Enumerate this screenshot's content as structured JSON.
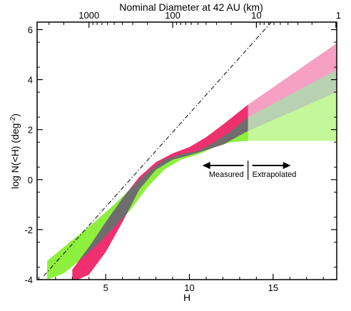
{
  "chart_data": {
    "type": "area",
    "title": "Nominal Diameter at 42 AU (km)",
    "xlabel": "H",
    "ylabel_main": "log N(<H)  (deg",
    "ylabel_sup": "-2",
    "ylabel_end": ")",
    "xlim": [
      0.9,
      18.8
    ],
    "ylim": [
      -4,
      6.3
    ],
    "x_ticks": [
      5,
      10,
      15
    ],
    "y_ticks": [
      -4,
      -2,
      0,
      2,
      4,
      6
    ],
    "x_tick_labels": [
      "5",
      "10",
      "15"
    ],
    "y_tick_labels": [
      "-4",
      "-2",
      "0",
      "2",
      "4",
      "6"
    ],
    "top_axis_labels": [
      "1000",
      "100",
      "10",
      "1"
    ],
    "top_axis_H": [
      4.0,
      9.0,
      14.0,
      18.75
    ],
    "measured_limit_H": 13.5,
    "annotations": {
      "measured": "Measured",
      "extrapolated": "Extrapolated"
    },
    "reference_line": {
      "style": "dash-dot",
      "points": [
        [
          1.3,
          -3.85
        ],
        [
          15.7,
          6.9
        ]
      ]
    },
    "colors": {
      "red_band": "#f0306e",
      "pink_band": "#f6a0c4",
      "green_band": "#8cf03c",
      "light_green_band": "#c3f799",
      "overlap": "#6e6e6e",
      "overlap_extrapolated": "#b8d1b0"
    },
    "series": [
      {
        "name": "",
        "color": "red",
        "measured": {
          "x": [
            3.0,
            4.0,
            5.0,
            6.0,
            7.0,
            8.0,
            9.0,
            10.0,
            11.0,
            12.0,
            13.5
          ],
          "upper": [
            -3.6,
            -2.7,
            -1.7,
            -0.75,
            0.1,
            0.7,
            1.05,
            1.3,
            1.7,
            2.2,
            3.0
          ],
          "lower": [
            -4.1,
            -3.8,
            -2.9,
            -1.7,
            -0.4,
            0.4,
            0.8,
            0.98,
            1.18,
            1.4,
            1.95
          ]
        },
        "extrapolated": {
          "x": [
            13.5,
            18.8
          ],
          "upper": [
            3.0,
            5.45
          ],
          "lower": [
            1.95,
            3.5
          ]
        }
      },
      {
        "name": "",
        "color": "green",
        "measured": {
          "x": [
            1.5,
            2.5,
            3.5,
            4.5,
            5.5,
            6.5,
            7.5,
            8.5,
            9.5,
            10.5,
            11.5,
            12.5,
            13.5
          ],
          "upper": [
            -3.25,
            -2.7,
            -2.15,
            -1.6,
            -1.0,
            -0.35,
            0.3,
            0.8,
            1.02,
            1.15,
            1.5,
            1.95,
            2.5
          ],
          "lower": [
            -4.0,
            -3.75,
            -3.2,
            -2.6,
            -1.9,
            -1.2,
            -0.3,
            0.4,
            0.8,
            1.0,
            1.3,
            1.5,
            1.55
          ]
        },
        "extrapolated": {
          "x": [
            13.5,
            18.8
          ],
          "upper": [
            2.5,
            4.4
          ],
          "lower": [
            1.55,
            1.55
          ]
        }
      }
    ]
  }
}
